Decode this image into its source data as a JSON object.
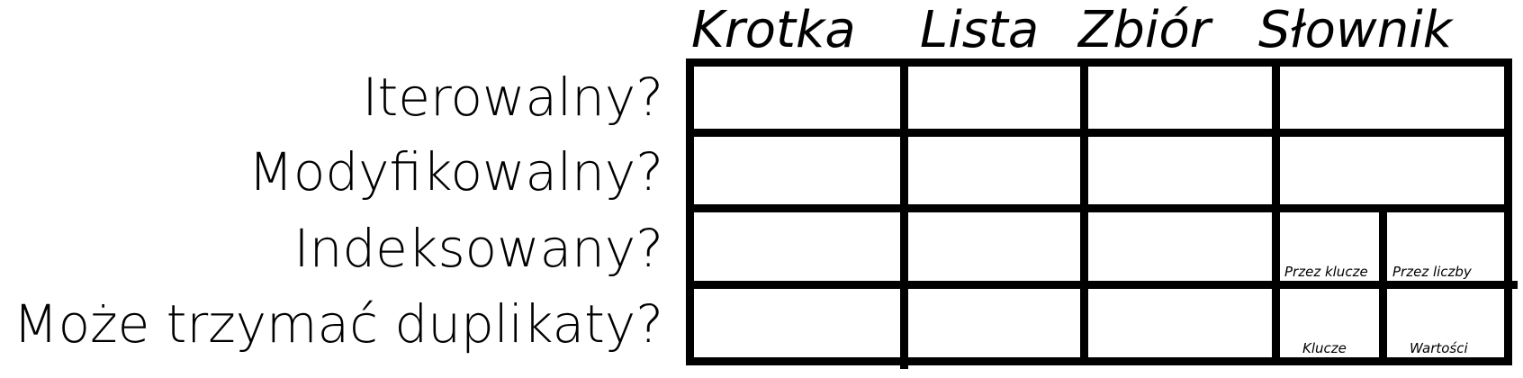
{
  "columns": {
    "tuple": "Krotka",
    "list": "Lista",
    "set": "Zbiór",
    "dict": "Słownik"
  },
  "rows": {
    "iterable": "Iterowalny?",
    "mutable": "Modyfikowalny?",
    "indexed": "Indeksowany?",
    "duplicates": "Może trzymać duplikaty?"
  },
  "dict_subcells": {
    "indexed_by_keys": "Przez klucze",
    "indexed_by_numbers": "Przez liczby",
    "dup_keys": "Klucze",
    "dup_values": "Wartości"
  }
}
